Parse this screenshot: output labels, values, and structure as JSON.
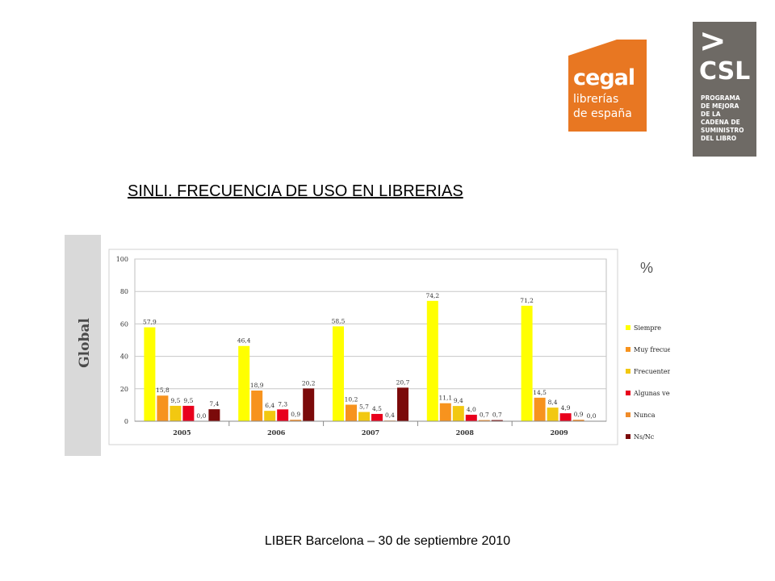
{
  "slide": {
    "title": "SINLI. FRECUENCIA DE USO EN LIBRERIAS",
    "footer": "LIBER Barcelona – 30 de septiembre 2010",
    "side_label": "Global"
  },
  "logos": {
    "cegal": {
      "name": "cegal",
      "line1": "librerías",
      "line2": "de españa",
      "color": "#e87722"
    },
    "csl": {
      "chevron": ">",
      "name": "CSL",
      "lines": [
        "PROGRAMA",
        "DE MEJORA",
        "DE LA",
        "CADENA DE",
        "SUMINISTRO",
        "DEL LIBRO"
      ],
      "color": "#6e6a65"
    }
  },
  "chart_data": {
    "type": "bar",
    "unit_label": "%",
    "categories": [
      "2005",
      "2006",
      "2007",
      "2008",
      "2009"
    ],
    "ylim": [
      0,
      100
    ],
    "yticks": [
      0,
      20,
      40,
      60,
      80,
      100
    ],
    "grid": true,
    "legend_position": "right",
    "series": [
      {
        "name": "Siempre",
        "color": "#ffff00",
        "values": [
          57.9,
          46.4,
          58.5,
          74.2,
          71.2
        ],
        "labels": [
          "57,9",
          "46,4",
          "58,5",
          "74,2",
          "71,2"
        ]
      },
      {
        "name": "Muy frecuentemente",
        "color": "#f7931e",
        "values": [
          15.8,
          18.9,
          10.2,
          11.1,
          14.5
        ],
        "labels": [
          "15,8",
          "18,9",
          "10,2",
          "11,1",
          "14,5"
        ]
      },
      {
        "name": "Frecuentemente",
        "color": "#f2c811",
        "values": [
          9.5,
          6.4,
          5.7,
          9.4,
          8.4
        ],
        "labels": [
          "9,5",
          "6,4",
          "5,7",
          "9,4",
          "8,4"
        ]
      },
      {
        "name": "Algunas veces",
        "color": "#e8001c",
        "values": [
          9.5,
          7.3,
          4.5,
          4.0,
          4.9
        ],
        "labels": [
          "9,5",
          "7,3",
          "4,5",
          "4,0",
          "4,9"
        ]
      },
      {
        "name": "Nunca",
        "color": "#f08c2a",
        "values": [
          0.0,
          0.9,
          0.4,
          0.7,
          0.9
        ],
        "labels": [
          "0,0",
          "0,9",
          "0,4",
          "0,7",
          "0,9"
        ]
      },
      {
        "name": "Ns/Nc",
        "color": "#7b0a0a",
        "values": [
          7.4,
          20.2,
          20.7,
          0.7,
          0.0
        ],
        "labels": [
          "7,4",
          "20,2",
          "20,7",
          "0,7",
          "0,0"
        ]
      }
    ]
  }
}
